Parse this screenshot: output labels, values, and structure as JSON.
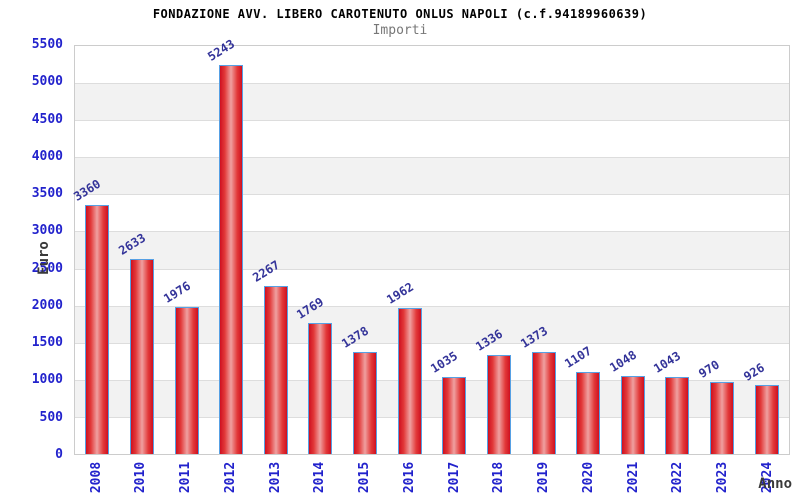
{
  "header": {
    "title": "FONDAZIONE AVV. LIBERO CAROTENUTO ONLUS NAPOLI (c.f.94189960639)",
    "subtitle": "Importi"
  },
  "axes": {
    "y_title": "Euro",
    "x_title": "Anno"
  },
  "chart_data": {
    "type": "bar",
    "title": "FONDAZIONE AVV. LIBERO CAROTENUTO ONLUS NAPOLI (c.f.94189960639)",
    "subtitle": "Importi",
    "xlabel": "Anno",
    "ylabel": "Euro",
    "categories": [
      "2008",
      "2010",
      "2011",
      "2012",
      "2013",
      "2014",
      "2015",
      "2016",
      "2017",
      "2018",
      "2019",
      "2020",
      "2021",
      "2022",
      "2023",
      "2024"
    ],
    "values": [
      3360,
      2633,
      1976,
      5243,
      2267,
      1769,
      1378,
      1962,
      1035,
      1336,
      1373,
      1107,
      1048,
      1043,
      970,
      926
    ],
    "ylim": [
      0,
      5500
    ],
    "yticks": [
      0,
      500,
      1000,
      1500,
      2000,
      2500,
      3000,
      3500,
      4000,
      4500,
      5000,
      5500
    ],
    "grid": "alternating horizontal bands every 500 with light gridlines",
    "legend": "none",
    "value_labels": "shown above each bar, rotated",
    "colors": {
      "bar_fill_edge": "#cf1020",
      "bar_fill_center": "#efa0a0",
      "bar_border": "#56a0e4",
      "tick_label": "#2222cc",
      "value_label": "#333399",
      "band_gray": "#f2f2f2",
      "grid_line": "#dddddd",
      "plot_border": "#cccccc",
      "axis_title": "#3a3a3a",
      "title": "#000000",
      "subtitle": "#777777"
    }
  }
}
